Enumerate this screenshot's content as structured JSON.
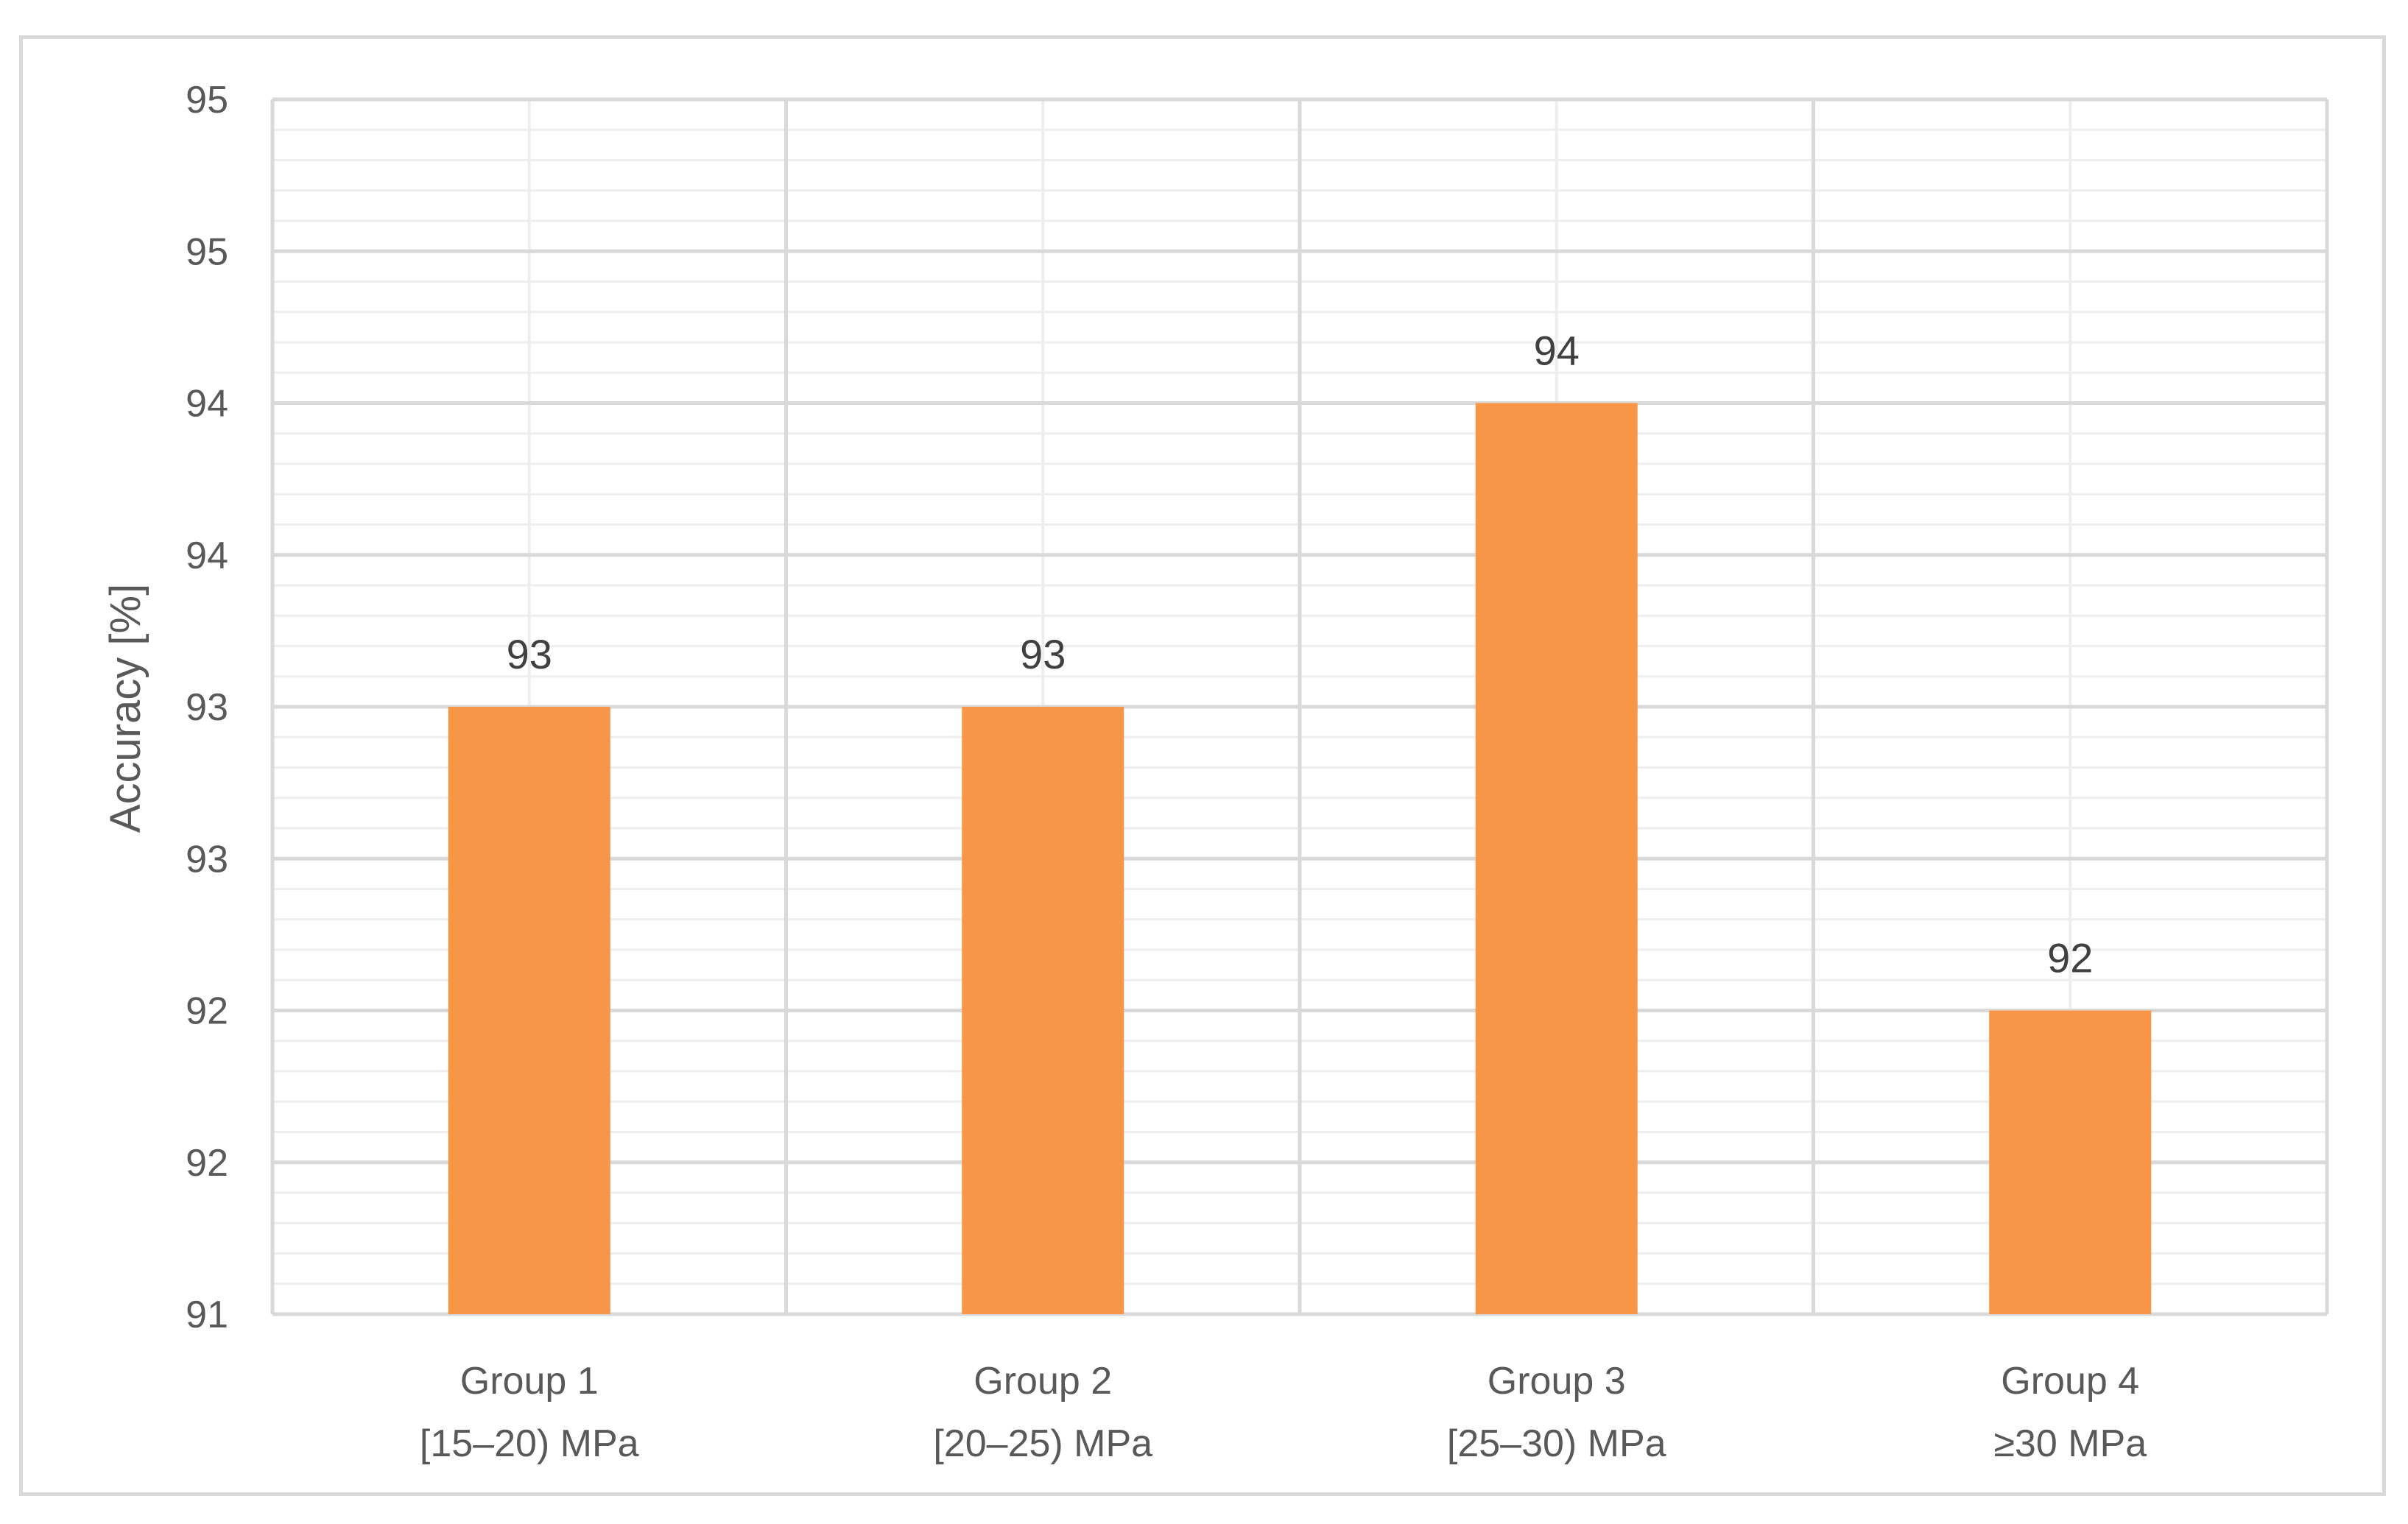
{
  "chart_data": {
    "type": "bar",
    "title": "",
    "xlabel": "",
    "ylabel": "Accuracy [%]",
    "categories": [
      [
        "Group 1",
        "[15–20) MPa"
      ],
      [
        "Group 2",
        "[20–25) MPa"
      ],
      [
        "Group 3",
        "[25–30) MPa"
      ],
      [
        "Group 4",
        "≥30 MPa"
      ]
    ],
    "values": [
      93,
      93,
      94,
      92
    ],
    "data_labels": [
      "93",
      "93",
      "94",
      "92"
    ],
    "ylim": [
      91,
      95
    ],
    "y_tick_values": [
      91,
      91.5,
      92,
      92.5,
      93,
      93.5,
      94,
      94.5,
      95
    ],
    "y_tick_labels": [
      "91",
      "92",
      "92",
      "93",
      "93",
      "94",
      "94",
      "95",
      "95"
    ],
    "grid": true,
    "minor_grid": true,
    "legend": "none",
    "colors": {
      "bar": "#f79646",
      "major_grid": "#d9d9d9",
      "minor_grid": "#eeeeee",
      "text": "#595959"
    }
  }
}
